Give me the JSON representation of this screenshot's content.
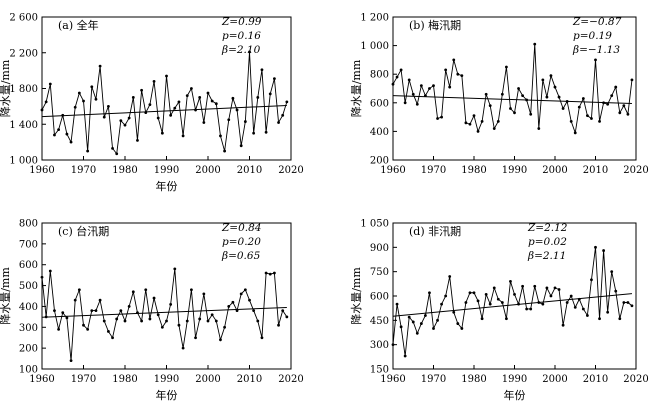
{
  "chart_data": [
    {
      "type": "line",
      "panel_label": "(a) 全年",
      "xlabel": "年份",
      "ylabel": "降水量/mm",
      "xlim": [
        1960,
        2020
      ],
      "ylim": [
        1000,
        2600
      ],
      "xticks": [
        "1960",
        "1970",
        "1980",
        "1990",
        "2000",
        "2010",
        "2020"
      ],
      "yticks": [
        "1 000",
        "1 400",
        "1 800",
        "2 200",
        "2 600"
      ],
      "stats": [
        "Z=0.99",
        "p=0.16",
        "β=2.10"
      ],
      "trend": {
        "x": [
          1960,
          2019
        ],
        "y": [
          1485,
          1610
        ]
      },
      "series": [
        {
          "x": [
            1960,
            1961,
            1962,
            1963,
            1964,
            1965,
            1966,
            1967,
            1968,
            1969,
            1970,
            1971,
            1972,
            1973,
            1974,
            1975,
            1976,
            1977,
            1978,
            1979,
            1980,
            1981,
            1982,
            1983,
            1984,
            1985,
            1986,
            1987,
            1988,
            1989,
            1990,
            1991,
            1992,
            1993,
            1994,
            1995,
            1996,
            1997,
            1998,
            1999,
            2000,
            2001,
            2002,
            2003,
            2004,
            2005,
            2006,
            2007,
            2008,
            2009,
            2010,
            2011,
            2012,
            2013,
            2014,
            2015,
            2016,
            2017,
            2018,
            2019
          ],
          "y": [
            1560,
            1650,
            1850,
            1280,
            1340,
            1500,
            1290,
            1200,
            1590,
            1750,
            1660,
            1100,
            1820,
            1680,
            2050,
            1480,
            1600,
            1130,
            1070,
            1440,
            1390,
            1470,
            1700,
            1220,
            1780,
            1530,
            1620,
            1880,
            1470,
            1300,
            1940,
            1500,
            1580,
            1650,
            1270,
            1720,
            1800,
            1560,
            1700,
            1420,
            1750,
            1660,
            1630,
            1270,
            1100,
            1450,
            1690,
            1560,
            1160,
            1430,
            2210,
            1300,
            1700,
            2010,
            1310,
            1740,
            1910,
            1420,
            1500,
            1650
          ]
        }
      ]
    },
    {
      "type": "line",
      "panel_label": "(b) 梅汛期",
      "xlabel": "",
      "ylabel": "降水量/mm",
      "xlim": [
        1960,
        2020
      ],
      "ylim": [
        200,
        1200
      ],
      "xticks": [
        "1960",
        "1970",
        "1980",
        "1990",
        "2000",
        "2010",
        "2020"
      ],
      "yticks": [
        "200",
        "400",
        "600",
        "800",
        "1 000",
        "1 200"
      ],
      "stats": [
        "Z=−0.87",
        "p=0.19",
        "β=−1.13"
      ],
      "trend": {
        "x": [
          1960,
          2019
        ],
        "y": [
          650,
          595
        ]
      },
      "series": [
        {
          "x": [
            1960,
            1961,
            1962,
            1963,
            1964,
            1965,
            1966,
            1967,
            1968,
            1969,
            1970,
            1971,
            1972,
            1973,
            1974,
            1975,
            1976,
            1977,
            1978,
            1979,
            1980,
            1981,
            1982,
            1983,
            1984,
            1985,
            1986,
            1987,
            1988,
            1989,
            1990,
            1991,
            1992,
            1993,
            1994,
            1995,
            1996,
            1997,
            1998,
            1999,
            2000,
            2001,
            2002,
            2003,
            2004,
            2005,
            2006,
            2007,
            2008,
            2009,
            2010,
            2011,
            2012,
            2013,
            2014,
            2015,
            2016,
            2017,
            2018,
            2019
          ],
          "y": [
            730,
            780,
            830,
            600,
            760,
            660,
            590,
            720,
            650,
            700,
            720,
            490,
            500,
            830,
            710,
            900,
            800,
            790,
            460,
            450,
            510,
            400,
            470,
            660,
            580,
            420,
            470,
            660,
            850,
            560,
            530,
            700,
            650,
            620,
            520,
            1010,
            420,
            760,
            640,
            790,
            710,
            640,
            560,
            610,
            470,
            390,
            570,
            630,
            510,
            490,
            900,
            470,
            600,
            590,
            650,
            710,
            530,
            580,
            520,
            760
          ]
        }
      ]
    },
    {
      "type": "line",
      "panel_label": "(c) 台汛期",
      "xlabel": "年份",
      "ylabel": "降水量/mm",
      "xlim": [
        1960,
        2020
      ],
      "ylim": [
        100,
        800
      ],
      "xticks": [
        "1960",
        "1970",
        "1980",
        "1990",
        "2000",
        "2010",
        "2020"
      ],
      "yticks": [
        "100",
        "200",
        "300",
        "400",
        "500",
        "600",
        "700",
        "800"
      ],
      "stats": [
        "Z=0.84",
        "p=0.20",
        "β=0.65"
      ],
      "trend": {
        "x": [
          1960,
          2019
        ],
        "y": [
          348,
          395
        ]
      },
      "series": [
        {
          "x": [
            1960,
            1961,
            1962,
            1963,
            1964,
            1965,
            1966,
            1967,
            1968,
            1969,
            1970,
            1971,
            1972,
            1973,
            1974,
            1975,
            1976,
            1977,
            1978,
            1979,
            1980,
            1981,
            1982,
            1983,
            1984,
            1985,
            1986,
            1987,
            1988,
            1989,
            1990,
            1991,
            1992,
            1993,
            1994,
            1995,
            1996,
            1997,
            1998,
            1999,
            2000,
            2001,
            2002,
            2003,
            2004,
            2005,
            2006,
            2007,
            2008,
            2009,
            2010,
            2011,
            2012,
            2013,
            2014,
            2015,
            2016,
            2017,
            2018,
            2019
          ],
          "y": [
            540,
            350,
            570,
            380,
            290,
            370,
            345,
            140,
            430,
            480,
            310,
            290,
            380,
            380,
            430,
            330,
            280,
            250,
            340,
            380,
            330,
            400,
            470,
            370,
            330,
            480,
            340,
            440,
            360,
            300,
            330,
            410,
            580,
            310,
            200,
            330,
            480,
            250,
            340,
            460,
            330,
            360,
            330,
            240,
            300,
            400,
            420,
            380,
            460,
            480,
            430,
            380,
            330,
            250,
            560,
            555,
            560,
            310,
            380,
            350
          ]
        }
      ]
    },
    {
      "type": "line",
      "panel_label": "(d) 非汛期",
      "xlabel": "年份",
      "ylabel": "降水量/mm",
      "xlim": [
        1960,
        2020
      ],
      "ylim": [
        150,
        1050
      ],
      "xticks": [
        "1960",
        "1970",
        "1980",
        "1990",
        "2000",
        "2010",
        "2020"
      ],
      "yticks": [
        "150",
        "300",
        "450",
        "600",
        "750",
        "900",
        "1 050"
      ],
      "stats": [
        "Z=2.12",
        "p=0.02",
        "β=2.11"
      ],
      "trend": {
        "x": [
          1960,
          2019
        ],
        "y": [
          475,
          615
        ]
      },
      "series": [
        {
          "x": [
            1960,
            1961,
            1962,
            1963,
            1964,
            1965,
            1966,
            1967,
            1968,
            1969,
            1970,
            1971,
            1972,
            1973,
            1974,
            1975,
            1976,
            1977,
            1978,
            1979,
            1980,
            1981,
            1982,
            1983,
            1984,
            1985,
            1986,
            1987,
            1988,
            1989,
            1990,
            1991,
            1992,
            1993,
            1994,
            1995,
            1996,
            1997,
            1998,
            1999,
            2000,
            2001,
            2002,
            2003,
            2004,
            2005,
            2006,
            2007,
            2008,
            2009,
            2010,
            2011,
            2012,
            2013,
            2014,
            2015,
            2016,
            2017,
            2018,
            2019
          ],
          "y": [
            300,
            550,
            410,
            230,
            470,
            440,
            370,
            430,
            480,
            620,
            400,
            450,
            550,
            600,
            720,
            500,
            430,
            400,
            560,
            620,
            620,
            570,
            460,
            610,
            550,
            650,
            580,
            560,
            460,
            690,
            610,
            550,
            660,
            520,
            520,
            660,
            560,
            550,
            650,
            600,
            650,
            640,
            420,
            560,
            600,
            530,
            580,
            520,
            480,
            700,
            900,
            460,
            880,
            500,
            750,
            630,
            460,
            560,
            560,
            540
          ]
        }
      ]
    }
  ]
}
